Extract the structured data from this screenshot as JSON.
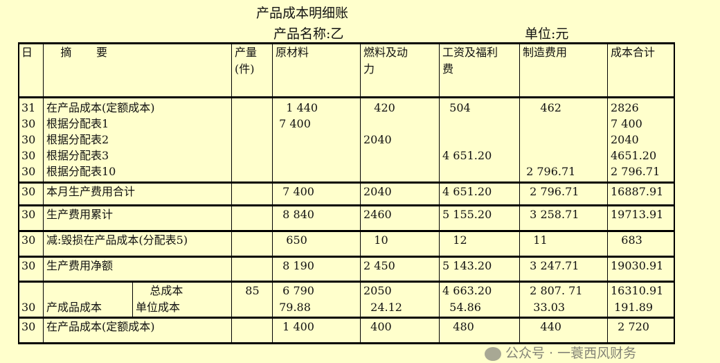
{
  "title": "产品成本明细账",
  "product_name": "产品名称:乙",
  "unit": "单位:元",
  "headers": [
    "日",
    "    摘       要",
    "产量\n(件)",
    "原材料",
    "燃料及动\n力",
    "工资及福利\n费",
    "制造费用",
    "成本合计"
  ],
  "rows": [
    {
      "date": "31\n30\n30\n30\n30",
      "summary": "在产品成本(定额成本)\n根据分配表1\n根据分配表2\n根据分配表3\n根据分配表10",
      "qty": "",
      "values": [
        "   1 440\n 7 400\n\n\n",
        "   420\n\n2040\n\n",
        "  504\n\n\n4 651.20\n",
        "     462\n\n\n\n 2 796.71",
        "2826\n7 400\n2040\n4651.20\n2 796.71"
      ]
    },
    {
      "date": "30",
      "summary": "本月生产费用合计",
      "qty": "",
      "values": [
        "  7 400",
        "2040",
        "4 651.20",
        "  2 796.71",
        "16887.91"
      ]
    },
    {
      "date": "30",
      "summary": "生产费用累计",
      "qty": "",
      "values": [
        "  8 840",
        "2460",
        "5 155.20",
        "  3 258.71",
        "19713.91"
      ]
    },
    {
      "date": "30",
      "summary": "减:毁损在产品成本(分配表5)",
      "qty": "",
      "values": [
        "   650",
        "   10",
        "   12",
        "   11",
        "   683"
      ]
    },
    {
      "date": "30",
      "summary": "生产费用净额",
      "qty": "",
      "values": [
        "  8 190",
        "2 450",
        "5 143.20",
        "  3 247.71",
        "19030.91"
      ]
    },
    {
      "date": "\n30",
      "summary": "\n产成品成本",
      "sub": "    总成本\n单位成本",
      "qty": "   85",
      "values": [
        "  6 790\n 79.88",
        "2050\n  24.12",
        "4 663.20\n  54.86",
        "  2 807. 71\n   33.03",
        "16310.91\n 191.89"
      ]
    },
    {
      "date": "30",
      "summary": "在产品成本(定额成本)",
      "qty": "",
      "values": [
        "  1 400",
        "  400",
        "   480",
        "     440",
        "  2 720"
      ]
    }
  ],
  "watermark": "公众号 · 一蓑西风财务"
}
